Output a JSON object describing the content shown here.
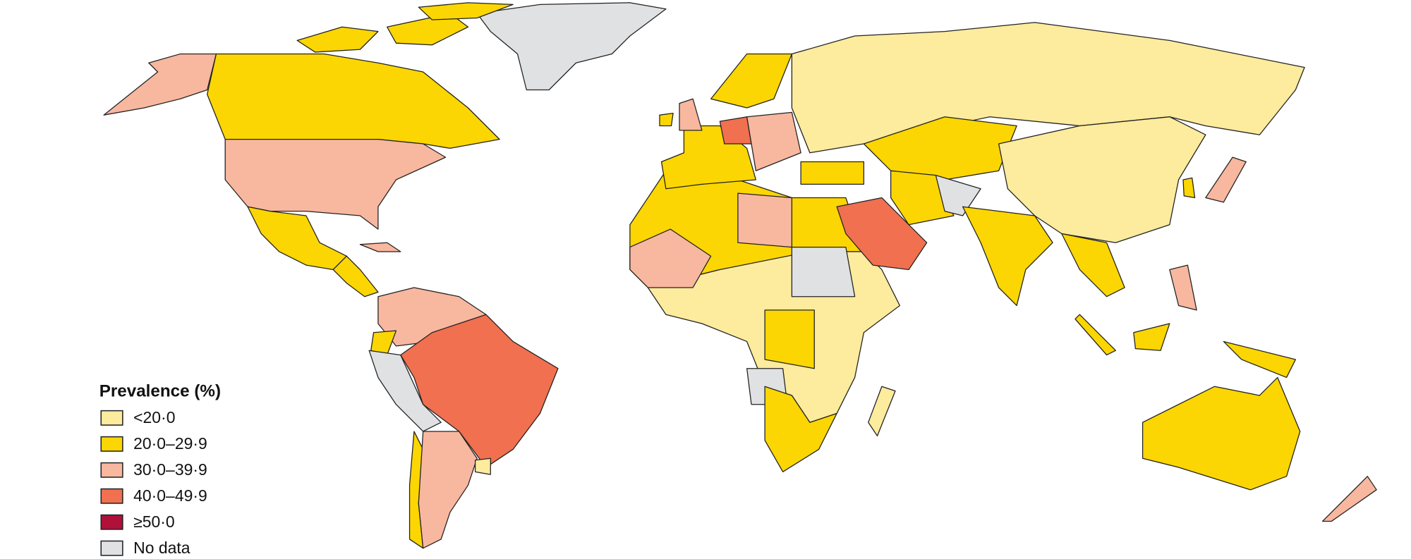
{
  "legend": {
    "title": "Prevalence (%)",
    "items": [
      {
        "label": "<20·0",
        "color": "#fdeb9e"
      },
      {
        "label": "20·0–29·9",
        "color": "#fbd602"
      },
      {
        "label": "30·0–39·9",
        "color": "#f8b79f"
      },
      {
        "label": "40·0–49·9",
        "color": "#f07050"
      },
      {
        "label": "≥50·0",
        "color": "#b0103a"
      },
      {
        "label": "No data",
        "color": "#e0e1e3"
      }
    ]
  }
}
